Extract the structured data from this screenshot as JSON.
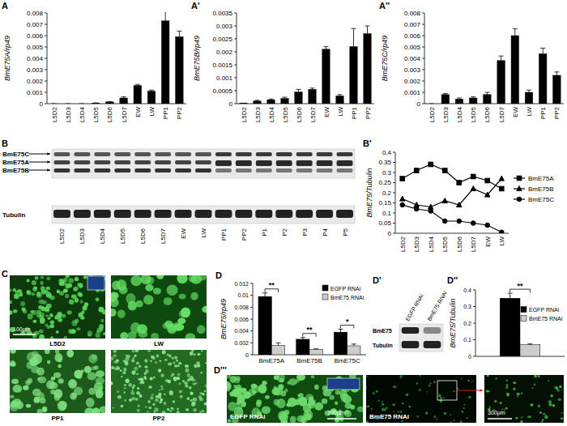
{
  "chart_data": [
    {
      "type": "bar",
      "panel": "A",
      "y_label": "BmE75A/rp49",
      "categories": [
        "L5D2",
        "L5D3",
        "L5D4",
        "L5D5",
        "L5D6",
        "L5D7",
        "EW",
        "LW",
        "PP1",
        "PP2"
      ],
      "values": [
        0,
        0,
        0,
        5e-05,
        0.00015,
        0.0005,
        0.0016,
        0.0011,
        0.0073,
        0.0059
      ],
      "errors": [
        0,
        0,
        0,
        2e-05,
        3e-05,
        0.0001,
        0.0001,
        0.0001,
        0.0012,
        0.0005
      ],
      "color": "#000000",
      "ylim": [
        0,
        0.008
      ],
      "yticks": [
        0,
        0.001,
        0.002,
        0.003,
        0.004,
        0.005,
        0.006,
        0.007,
        0.008
      ]
    },
    {
      "type": "bar",
      "panel": "A'",
      "y_label": "BmE75B/rp49",
      "categories": [
        "L5D2",
        "L5D3",
        "L5D4",
        "L5D5",
        "L5D6",
        "L5D7",
        "EW",
        "LW",
        "PP1",
        "PP2"
      ],
      "values": [
        2e-05,
        0.0001,
        0.00015,
        0.0002,
        0.00045,
        0.00055,
        0.0021,
        0.0003,
        0.0022,
        0.0027
      ],
      "errors": [
        0,
        3e-05,
        3e-05,
        5e-05,
        0.0001,
        5e-05,
        0.0001,
        5e-05,
        0.0007,
        0.0003
      ],
      "color": "#000000",
      "ylim": [
        0,
        0.0035
      ],
      "yticks": [
        0,
        0.0005,
        0.001,
        0.0015,
        0.002,
        0.0025,
        0.003,
        0.0035
      ]
    },
    {
      "type": "bar",
      "panel": "A''",
      "y_label": "BmE75C/rp49",
      "categories": [
        "L5D2",
        "L5D3",
        "L5D4",
        "L5D5",
        "L5D6",
        "L5D7",
        "EW",
        "LW",
        "PP1",
        "PP2"
      ],
      "values": [
        0,
        0.0008,
        0.0004,
        0.0005,
        0.0008,
        0.0038,
        0.006,
        0.001,
        0.0044,
        0.0025
      ],
      "errors": [
        0,
        0.0001,
        0.0001,
        0.0001,
        0.0002,
        0.0004,
        0.0006,
        0.0002,
        0.0005,
        0.0003
      ],
      "color": "#000000",
      "ylim": [
        0,
        0.008
      ],
      "yticks": [
        0,
        0.001,
        0.002,
        0.003,
        0.004,
        0.005,
        0.006,
        0.007,
        0.008
      ]
    },
    {
      "type": "line",
      "panel": "B'",
      "y_label": "BmE75/Tubulin",
      "categories": [
        "L5D2",
        "L5D3",
        "L5D4",
        "L5D5",
        "L5D6",
        "L5D7",
        "EW",
        "LW"
      ],
      "series": [
        {
          "name": "BmE75A",
          "color": "#000000",
          "marker": "square",
          "values": [
            0.27,
            0.31,
            0.34,
            0.31,
            0.25,
            0.28,
            0.26,
            0.22
          ]
        },
        {
          "name": "BmE75B",
          "color": "#000000",
          "marker": "triangle",
          "values": [
            0.17,
            0.14,
            0.13,
            0.16,
            0.14,
            0.22,
            0.19,
            0.27
          ]
        },
        {
          "name": "BmE75C",
          "color": "#000000",
          "marker": "circle",
          "values": [
            0.14,
            0.12,
            0.11,
            0.06,
            0.06,
            0.05,
            0.04,
            0.005
          ]
        }
      ],
      "ylim": [
        0,
        0.4
      ],
      "yticks": [
        0,
        0.05,
        0.1,
        0.15,
        0.2,
        0.25,
        0.3,
        0.35,
        0.4
      ],
      "legend": "right"
    },
    {
      "type": "bar",
      "panel": "D",
      "y_label": "BmE75/rp49",
      "categories": [
        "BmE75A",
        "BmE75B",
        "BmE75C"
      ],
      "series": [
        {
          "name": "EGFP RNAi",
          "color": "#000000",
          "values": [
            0.0098,
            0.0026,
            0.0038
          ],
          "errors": [
            0.0006,
            0.0003,
            0.0005
          ]
        },
        {
          "name": "BmE75 RNAi",
          "color": "#cccccc",
          "values": [
            0.0016,
            0.0009,
            0.0015
          ],
          "errors": [
            0.0004,
            0.0001,
            0.0003
          ]
        }
      ],
      "annotations": [
        "**",
        "**",
        "*"
      ],
      "ylim": [
        0,
        0.012
      ],
      "yticks": [
        0,
        0.002,
        0.004,
        0.006,
        0.008,
        0.01,
        0.012
      ],
      "legend": "top-right"
    },
    {
      "type": "bar",
      "panel": "D''",
      "y_label": "BmE75/Tubulin",
      "categories": [
        null
      ],
      "series": [
        {
          "name": "EGFP RNAi",
          "color": "#000000",
          "values": [
            0.35
          ],
          "errors": [
            0.03
          ]
        },
        {
          "name": "BmE75 RNAi",
          "color": "#cccccc",
          "values": [
            0.07
          ],
          "errors": [
            0.005
          ]
        }
      ],
      "annotations": [
        "**"
      ],
      "ylim": [
        0,
        0.4
      ],
      "yticks": [
        0,
        0.1,
        0.2,
        0.3,
        0.4
      ],
      "legend": "right"
    }
  ],
  "blots": [
    {
      "panel": "B",
      "bands": [
        "BmE75C",
        "BmE75A",
        "BmE75B"
      ],
      "loading": "Tubulin",
      "lanes": [
        "L5D2",
        "L5D3",
        "L5D4",
        "L5D5",
        "L5D6",
        "L5D7",
        "EW",
        "LW",
        "PP1",
        "PP2",
        "P1",
        "P2",
        "P3",
        "P4",
        "P5"
      ]
    },
    {
      "panel": "D'",
      "bands": [
        "BmE75"
      ],
      "loading": "Tubulin",
      "lanes": [
        "EGFP RNAi",
        "BmE75 RNAi"
      ]
    }
  ],
  "micrographs": [
    {
      "panel": "C",
      "labels": [
        "L5D2",
        "LW",
        "PP1",
        "PP2"
      ],
      "scale": "100μm"
    },
    {
      "panel": "D'''",
      "labels": [
        "EGFP RNAi",
        "BmE75 RNAi"
      ],
      "scales": [
        "100μm",
        "300μm"
      ]
    }
  ]
}
